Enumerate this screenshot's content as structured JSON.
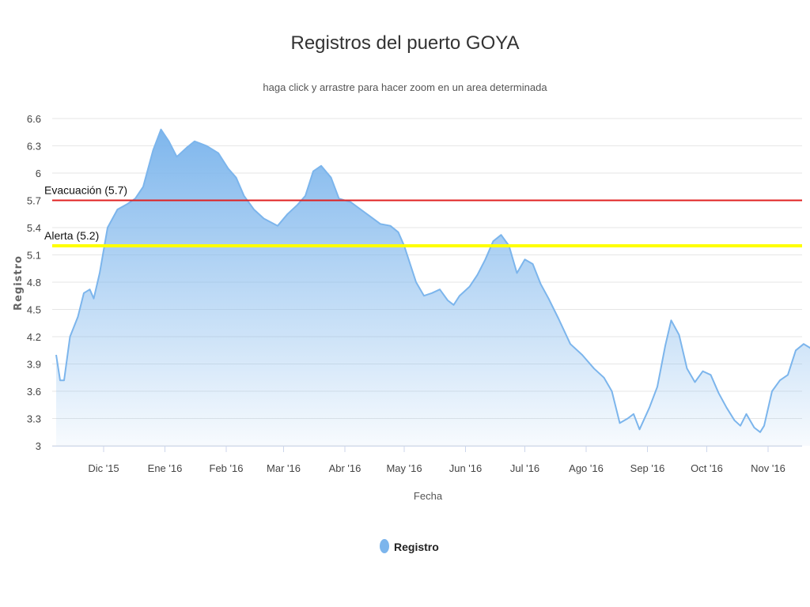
{
  "chart_data": {
    "type": "area",
    "title": "Registros del puerto GOYA",
    "subtitle": "haga click y arrastre para hacer zoom en un area determinada",
    "xlabel": "Fecha",
    "ylabel": "Registro",
    "ylim": [
      3,
      6.6
    ],
    "yticks": [
      "3",
      "3.3",
      "3.6",
      "3.9",
      "4.2",
      "4.5",
      "4.8",
      "5.1",
      "5.4",
      "5.7",
      "6",
      "6.3",
      "6.6"
    ],
    "xticks": [
      "Dic '15",
      "Ene '16",
      "Feb '16",
      "Mar '16",
      "Abr '16",
      "May '16",
      "Jun '16",
      "Jul '16",
      "Ago '16",
      "Sep '16",
      "Oct '16",
      "Nov '16"
    ],
    "grid": true,
    "legend": "bottom-center",
    "series": [
      {
        "name": "Registro",
        "color": "#7cb5ec",
        "points": [
          [
            "2015-11-07",
            4.0
          ],
          [
            "2015-11-09",
            3.72
          ],
          [
            "2015-11-11",
            3.72
          ],
          [
            "2015-11-14",
            4.2
          ],
          [
            "2015-11-18",
            4.42
          ],
          [
            "2015-11-21",
            4.68
          ],
          [
            "2015-11-24",
            4.72
          ],
          [
            "2015-11-26",
            4.62
          ],
          [
            "2015-11-29",
            4.9
          ],
          [
            "2015-12-03",
            5.4
          ],
          [
            "2015-12-08",
            5.6
          ],
          [
            "2015-12-13",
            5.66
          ],
          [
            "2015-12-17",
            5.72
          ],
          [
            "2015-12-21",
            5.85
          ],
          [
            "2015-12-26",
            6.25
          ],
          [
            "2015-12-30",
            6.48
          ],
          [
            "2016-01-03",
            6.35
          ],
          [
            "2016-01-07",
            6.18
          ],
          [
            "2016-01-12",
            6.28
          ],
          [
            "2016-01-16",
            6.35
          ],
          [
            "2016-01-22",
            6.3
          ],
          [
            "2016-01-28",
            6.22
          ],
          [
            "2016-02-02",
            6.05
          ],
          [
            "2016-02-06",
            5.95
          ],
          [
            "2016-02-10",
            5.75
          ],
          [
            "2016-02-15",
            5.6
          ],
          [
            "2016-02-20",
            5.5
          ],
          [
            "2016-02-27",
            5.42
          ],
          [
            "2016-03-03",
            5.55
          ],
          [
            "2016-03-08",
            5.65
          ],
          [
            "2016-03-12",
            5.75
          ],
          [
            "2016-03-16",
            6.02
          ],
          [
            "2016-03-20",
            6.08
          ],
          [
            "2016-03-25",
            5.95
          ],
          [
            "2016-03-29",
            5.72
          ],
          [
            "2016-04-04",
            5.68
          ],
          [
            "2016-04-09",
            5.6
          ],
          [
            "2016-04-14",
            5.52
          ],
          [
            "2016-04-19",
            5.44
          ],
          [
            "2016-04-24",
            5.42
          ],
          [
            "2016-04-28",
            5.35
          ],
          [
            "2016-05-01",
            5.2
          ],
          [
            "2016-05-04",
            5.0
          ],
          [
            "2016-05-07",
            4.8
          ],
          [
            "2016-05-11",
            4.65
          ],
          [
            "2016-05-15",
            4.68
          ],
          [
            "2016-05-19",
            4.72
          ],
          [
            "2016-05-23",
            4.6
          ],
          [
            "2016-05-26",
            4.55
          ],
          [
            "2016-05-29",
            4.65
          ],
          [
            "2016-06-03",
            4.75
          ],
          [
            "2016-06-07",
            4.88
          ],
          [
            "2016-06-11",
            5.05
          ],
          [
            "2016-06-15",
            5.25
          ],
          [
            "2016-06-19",
            5.32
          ],
          [
            "2016-06-23",
            5.2
          ],
          [
            "2016-06-27",
            4.9
          ],
          [
            "2016-07-01",
            5.05
          ],
          [
            "2016-07-05",
            5.0
          ],
          [
            "2016-07-09",
            4.78
          ],
          [
            "2016-07-13",
            4.62
          ],
          [
            "2016-07-18",
            4.4
          ],
          [
            "2016-07-24",
            4.12
          ],
          [
            "2016-07-30",
            4.0
          ],
          [
            "2016-08-05",
            3.85
          ],
          [
            "2016-08-10",
            3.75
          ],
          [
            "2016-08-14",
            3.6
          ],
          [
            "2016-08-18",
            3.25
          ],
          [
            "2016-08-22",
            3.3
          ],
          [
            "2016-08-25",
            3.35
          ],
          [
            "2016-08-28",
            3.18
          ],
          [
            "2016-09-02",
            3.42
          ],
          [
            "2016-09-06",
            3.65
          ],
          [
            "2016-09-10",
            4.1
          ],
          [
            "2016-09-13",
            4.38
          ],
          [
            "2016-09-17",
            4.22
          ],
          [
            "2016-09-21",
            3.85
          ],
          [
            "2016-09-25",
            3.7
          ],
          [
            "2016-09-29",
            3.82
          ],
          [
            "2016-10-03",
            3.78
          ],
          [
            "2016-10-07",
            3.58
          ],
          [
            "2016-10-11",
            3.42
          ],
          [
            "2016-10-15",
            3.28
          ],
          [
            "2016-10-18",
            3.22
          ],
          [
            "2016-10-21",
            3.35
          ],
          [
            "2016-10-25",
            3.2
          ],
          [
            "2016-10-28",
            3.15
          ],
          [
            "2016-10-30",
            3.22
          ],
          [
            "2016-11-03",
            3.6
          ],
          [
            "2016-11-07",
            3.72
          ],
          [
            "2016-11-11",
            3.78
          ],
          [
            "2016-11-15",
            4.05
          ],
          [
            "2016-11-19",
            4.12
          ],
          [
            "2016-11-22",
            4.08
          ],
          [
            "2016-11-24",
            4.05
          ]
        ]
      }
    ],
    "plot_lines": [
      {
        "label": "Evacuación (5.7)",
        "value": 5.7,
        "color": "#e02020"
      },
      {
        "label": "Alerta (5.2)",
        "value": 5.2,
        "color": "#ffff00"
      }
    ]
  }
}
